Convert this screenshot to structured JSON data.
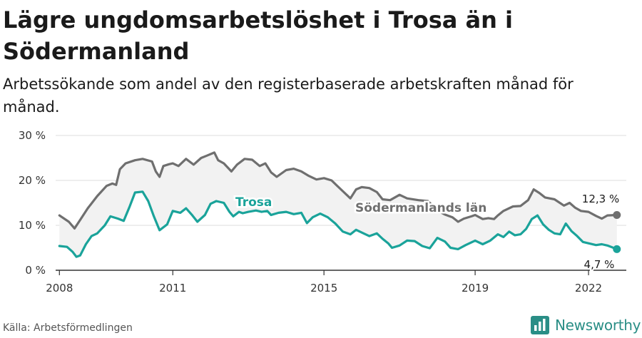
{
  "title": "Lägre ungdomsarbetslöshet i Trosa än i Södermanland",
  "subtitle": "Arbetssökande som andel av den registerbaserade arbetskraften månad för månad.",
  "source": "Källa: Arbetsförmedlingen",
  "brand": "Newsworthy",
  "colors": {
    "trosa": "#1aa39a",
    "lan": "#6f6f6f",
    "band": "#f2f2f2",
    "grid": "#dddddd",
    "brand": "#2a8e86"
  },
  "chart_data": {
    "type": "line",
    "title": "Lägre ungdomsarbetslöshet i Trosa än i Södermanland",
    "xlabel": "",
    "ylabel": "",
    "xlim": [
      2007.9,
      2023.0
    ],
    "ylim": [
      0,
      30
    ],
    "y_ticks": [
      0,
      10,
      20,
      30
    ],
    "y_tick_labels": [
      "0 %",
      "10 %",
      "20 %",
      "30 %"
    ],
    "x_ticks": [
      2008,
      2011,
      2015,
      2019,
      2022
    ],
    "x_tick_labels": [
      "2008",
      "2011",
      "2015",
      "2019",
      "2022"
    ],
    "grid": true,
    "series": [
      {
        "name": "Södermanlands län",
        "key": "lan",
        "label": "Södermanlands län",
        "end_label": "12,3 %",
        "points": [
          [
            2008.0,
            12.2
          ],
          [
            2008.25,
            10.8
          ],
          [
            2008.4,
            9.3
          ],
          [
            2008.55,
            11.2
          ],
          [
            2008.75,
            13.8
          ],
          [
            2009.0,
            16.5
          ],
          [
            2009.25,
            18.8
          ],
          [
            2009.4,
            19.3
          ],
          [
            2009.5,
            19.0
          ],
          [
            2009.6,
            22.5
          ],
          [
            2009.75,
            23.8
          ],
          [
            2010.0,
            24.5
          ],
          [
            2010.2,
            24.8
          ],
          [
            2010.45,
            24.2
          ],
          [
            2010.55,
            22.0
          ],
          [
            2010.65,
            20.8
          ],
          [
            2010.75,
            23.2
          ],
          [
            2010.9,
            23.6
          ],
          [
            2011.0,
            23.8
          ],
          [
            2011.15,
            23.2
          ],
          [
            2011.35,
            24.8
          ],
          [
            2011.55,
            23.5
          ],
          [
            2011.75,
            25.0
          ],
          [
            2011.9,
            25.5
          ],
          [
            2012.1,
            26.2
          ],
          [
            2012.2,
            24.5
          ],
          [
            2012.35,
            23.8
          ],
          [
            2012.55,
            22.0
          ],
          [
            2012.7,
            23.5
          ],
          [
            2012.9,
            24.8
          ],
          [
            2013.1,
            24.6
          ],
          [
            2013.3,
            23.2
          ],
          [
            2013.45,
            23.8
          ],
          [
            2013.6,
            21.8
          ],
          [
            2013.75,
            20.8
          ],
          [
            2014.0,
            22.3
          ],
          [
            2014.2,
            22.6
          ],
          [
            2014.4,
            22.0
          ],
          [
            2014.6,
            21.0
          ],
          [
            2014.8,
            20.2
          ],
          [
            2015.0,
            20.5
          ],
          [
            2015.2,
            20.0
          ],
          [
            2015.35,
            18.8
          ],
          [
            2015.5,
            17.6
          ],
          [
            2015.7,
            16.0
          ],
          [
            2015.85,
            18.0
          ],
          [
            2016.0,
            18.5
          ],
          [
            2016.2,
            18.3
          ],
          [
            2016.4,
            17.4
          ],
          [
            2016.55,
            15.8
          ],
          [
            2016.75,
            15.6
          ],
          [
            2017.0,
            16.8
          ],
          [
            2017.2,
            16.0
          ],
          [
            2017.5,
            15.6
          ],
          [
            2017.75,
            15.4
          ],
          [
            2018.0,
            13.3
          ],
          [
            2018.2,
            12.4
          ],
          [
            2018.4,
            11.8
          ],
          [
            2018.55,
            10.8
          ],
          [
            2018.7,
            11.5
          ],
          [
            2018.9,
            12.0
          ],
          [
            2019.0,
            12.3
          ],
          [
            2019.2,
            11.4
          ],
          [
            2019.35,
            11.6
          ],
          [
            2019.5,
            11.4
          ],
          [
            2019.6,
            12.2
          ],
          [
            2019.75,
            13.2
          ],
          [
            2020.0,
            14.2
          ],
          [
            2020.2,
            14.3
          ],
          [
            2020.4,
            15.6
          ],
          [
            2020.55,
            18.0
          ],
          [
            2020.7,
            17.2
          ],
          [
            2020.85,
            16.2
          ],
          [
            2021.1,
            15.8
          ],
          [
            2021.35,
            14.4
          ],
          [
            2021.5,
            15.0
          ],
          [
            2021.65,
            13.9
          ],
          [
            2021.8,
            13.2
          ],
          [
            2022.0,
            13.0
          ],
          [
            2022.2,
            12.1
          ],
          [
            2022.35,
            11.5
          ],
          [
            2022.5,
            12.2
          ],
          [
            2022.75,
            12.3
          ]
        ]
      },
      {
        "name": "Trosa",
        "key": "trosa",
        "label": "Trosa",
        "end_label": "4,7 %",
        "points": [
          [
            2008.0,
            5.4
          ],
          [
            2008.2,
            5.2
          ],
          [
            2008.35,
            4.1
          ],
          [
            2008.45,
            3.0
          ],
          [
            2008.55,
            3.3
          ],
          [
            2008.7,
            5.8
          ],
          [
            2008.85,
            7.6
          ],
          [
            2009.0,
            8.2
          ],
          [
            2009.2,
            10.0
          ],
          [
            2009.35,
            12.0
          ],
          [
            2009.55,
            11.5
          ],
          [
            2009.7,
            11.0
          ],
          [
            2009.85,
            14.0
          ],
          [
            2010.0,
            17.3
          ],
          [
            2010.2,
            17.5
          ],
          [
            2010.35,
            15.4
          ],
          [
            2010.5,
            12.0
          ],
          [
            2010.65,
            8.9
          ],
          [
            2010.85,
            10.2
          ],
          [
            2011.0,
            13.2
          ],
          [
            2011.2,
            12.8
          ],
          [
            2011.35,
            13.8
          ],
          [
            2011.5,
            12.4
          ],
          [
            2011.65,
            10.8
          ],
          [
            2011.85,
            12.3
          ],
          [
            2012.0,
            14.8
          ],
          [
            2012.15,
            15.4
          ],
          [
            2012.35,
            15.0
          ],
          [
            2012.5,
            13.0
          ],
          [
            2012.6,
            12.0
          ],
          [
            2012.75,
            13.0
          ],
          [
            2012.85,
            12.7
          ],
          [
            2013.0,
            13.0
          ],
          [
            2013.2,
            13.3
          ],
          [
            2013.35,
            13.0
          ],
          [
            2013.5,
            13.2
          ],
          [
            2013.6,
            12.3
          ],
          [
            2013.8,
            12.8
          ],
          [
            2014.0,
            13.0
          ],
          [
            2014.2,
            12.5
          ],
          [
            2014.4,
            12.8
          ],
          [
            2014.55,
            10.5
          ],
          [
            2014.7,
            11.8
          ],
          [
            2014.9,
            12.6
          ],
          [
            2015.1,
            11.8
          ],
          [
            2015.3,
            10.4
          ],
          [
            2015.5,
            8.6
          ],
          [
            2015.7,
            8.0
          ],
          [
            2015.85,
            9.0
          ],
          [
            2016.0,
            8.4
          ],
          [
            2016.2,
            7.6
          ],
          [
            2016.4,
            8.2
          ],
          [
            2016.55,
            7.0
          ],
          [
            2016.7,
            6.0
          ],
          [
            2016.8,
            5.0
          ],
          [
            2017.0,
            5.5
          ],
          [
            2017.2,
            6.6
          ],
          [
            2017.4,
            6.5
          ],
          [
            2017.6,
            5.4
          ],
          [
            2017.8,
            4.9
          ],
          [
            2018.0,
            7.2
          ],
          [
            2018.2,
            6.4
          ],
          [
            2018.35,
            5.0
          ],
          [
            2018.55,
            4.7
          ],
          [
            2018.75,
            5.6
          ],
          [
            2019.0,
            6.6
          ],
          [
            2019.2,
            5.8
          ],
          [
            2019.4,
            6.6
          ],
          [
            2019.6,
            8.0
          ],
          [
            2019.75,
            7.4
          ],
          [
            2019.9,
            8.6
          ],
          [
            2020.05,
            7.8
          ],
          [
            2020.2,
            8.0
          ],
          [
            2020.35,
            9.2
          ],
          [
            2020.5,
            11.4
          ],
          [
            2020.65,
            12.2
          ],
          [
            2020.8,
            10.2
          ],
          [
            2020.95,
            9.0
          ],
          [
            2021.1,
            8.2
          ],
          [
            2021.25,
            8.0
          ],
          [
            2021.4,
            10.4
          ],
          [
            2021.55,
            8.7
          ],
          [
            2021.7,
            7.6
          ],
          [
            2021.85,
            6.3
          ],
          [
            2022.0,
            6.0
          ],
          [
            2022.2,
            5.6
          ],
          [
            2022.35,
            5.8
          ],
          [
            2022.5,
            5.5
          ],
          [
            2022.75,
            4.7
          ]
        ]
      }
    ]
  }
}
